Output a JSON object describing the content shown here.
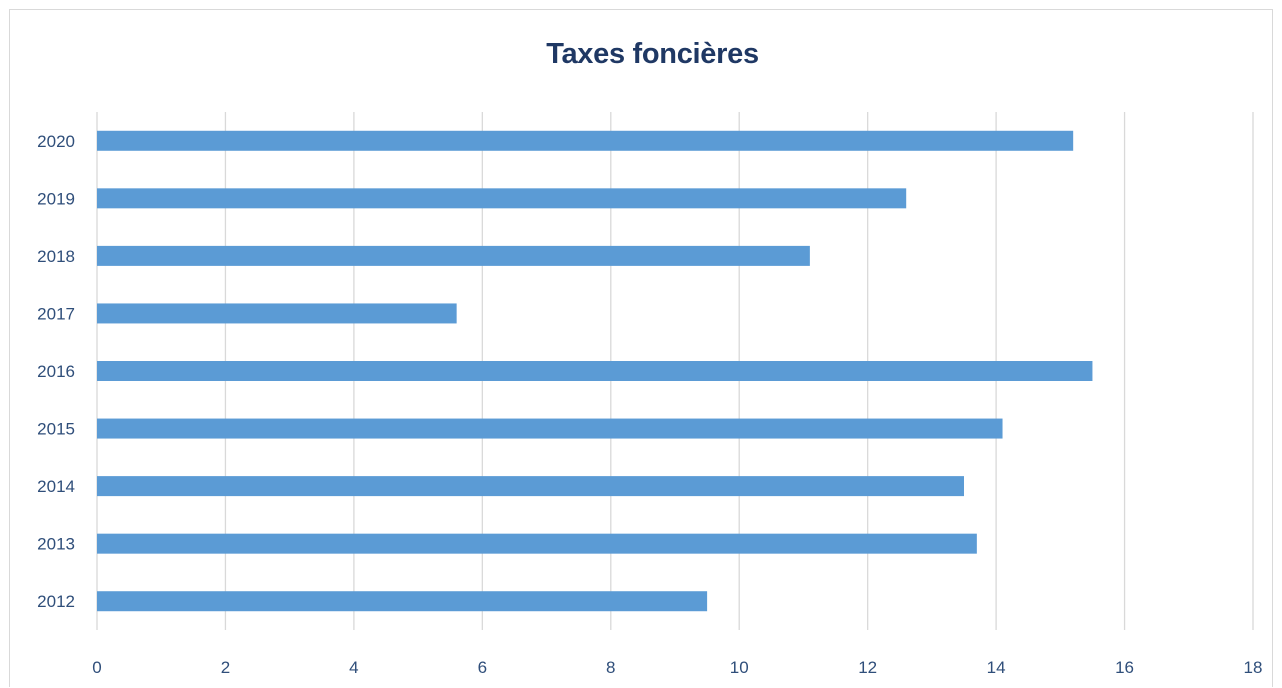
{
  "chart_data": {
    "type": "bar",
    "orientation": "horizontal",
    "title": "Taxes foncières",
    "xlabel": "",
    "ylabel": "",
    "categories": [
      "2012",
      "2013",
      "2014",
      "2015",
      "2016",
      "2017",
      "2018",
      "2019",
      "2020"
    ],
    "values": [
      9.5,
      13.7,
      13.5,
      14.1,
      15.5,
      5.6,
      11.1,
      12.6,
      15.2
    ],
    "xlim": [
      0,
      18
    ],
    "x_ticks": [
      "0",
      "2",
      "4",
      "6",
      "8",
      "10",
      "12",
      "14",
      "16",
      "18"
    ],
    "grid": true,
    "legend": "none",
    "colors": {
      "bar": "#5b9bd5",
      "grid": "#d9d9d9",
      "text": "#2f4e7a",
      "title": "#1f3864"
    }
  }
}
